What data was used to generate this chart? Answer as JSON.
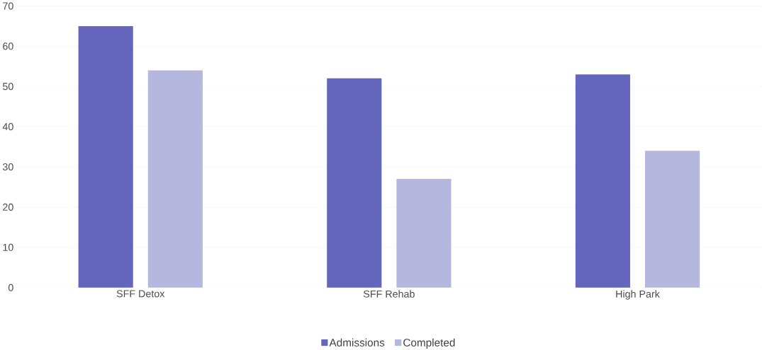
{
  "chart_data": {
    "type": "bar",
    "categories": [
      "SFF Detox",
      "SFF Rehab",
      "High Park"
    ],
    "series": [
      {
        "name": "Admissions",
        "color": "#6466be",
        "values": [
          65,
          52,
          53
        ]
      },
      {
        "name": "Completed",
        "color": "#b5b7de",
        "values": [
          54,
          27,
          34
        ]
      }
    ],
    "ylim": [
      0,
      70
    ],
    "yticks": [
      0,
      10,
      20,
      30,
      40,
      50,
      60,
      70
    ],
    "grid": "y",
    "legend": "bottom"
  }
}
